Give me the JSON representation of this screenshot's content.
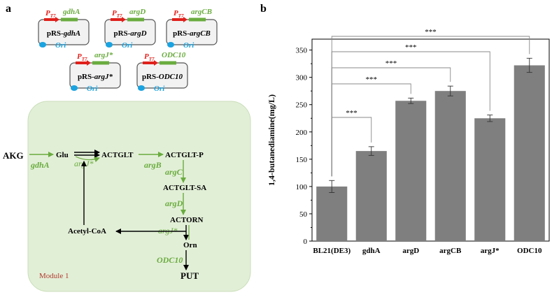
{
  "panel_a": {
    "label": "a",
    "promoter": "P",
    "promoter_sub": "T7",
    "ori": "Ori",
    "plasmids": [
      {
        "gene": "gdhA",
        "prefix": "pRS-",
        "name": "gdhA"
      },
      {
        "gene": "argD",
        "prefix": "pRS-",
        "name": "argD"
      },
      {
        "gene": "argCB",
        "prefix": "pRS-",
        "name": "argCB"
      },
      {
        "gene": "argJ*",
        "prefix": "pRS-",
        "name": "argJ*"
      },
      {
        "gene": "ODC10",
        "prefix": "pRS-",
        "name": "ODC10"
      }
    ],
    "pathway": {
      "AKG": "AKG",
      "Glu": "Glu",
      "ACTGLT": "ACTGLT",
      "ACTGLT_P": "ACTGLT-P",
      "ACTGLT_SA": "ACTGLT-SA",
      "ACTORN": "ACTORN",
      "Orn": "Orn",
      "PUT": "PUT",
      "AcetylCoA": "Acetyl-CoA",
      "enzymes": {
        "gdhA": "gdhA",
        "argJ1": "argJ*",
        "argB": "argB",
        "argC": "argC",
        "argD": "argD",
        "argJ2": "argJ*",
        "ODC10": "ODC10"
      },
      "module": "Module 1"
    }
  },
  "panel_b": {
    "label": "b",
    "chart_data": {
      "type": "bar",
      "categories": [
        "BL21(DE3)",
        "gdhA",
        "argD",
        "argCB",
        "argJ*",
        "ODC10"
      ],
      "values": [
        100,
        165,
        257,
        275,
        225,
        322
      ],
      "errors": [
        11,
        8,
        5,
        9,
        6,
        13
      ],
      "ylabel": "1,4-butanediamine(mg/L)",
      "ylim": [
        0,
        370
      ],
      "yticks": [
        0,
        50,
        100,
        150,
        200,
        250,
        300,
        350
      ],
      "significance": [
        {
          "to": "gdhA",
          "label": "***"
        },
        {
          "to": "argD",
          "label": "***"
        },
        {
          "to": "argCB",
          "label": "***"
        },
        {
          "to": "argJ*",
          "label": "***"
        },
        {
          "to": "ODC10",
          "label": "***"
        }
      ],
      "bar_color": "#7f7f7f"
    }
  }
}
